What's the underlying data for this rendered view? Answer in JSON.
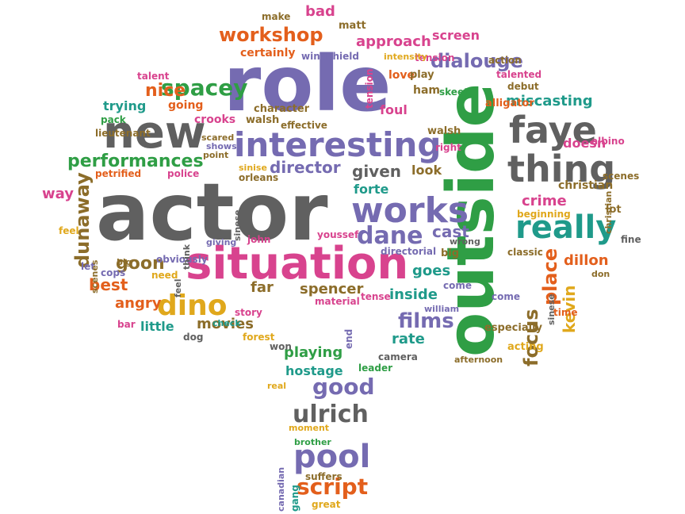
{
  "cloud": {
    "words": [
      {
        "text": "role",
        "color": "c0"
      },
      {
        "text": "actor",
        "color": "c2"
      },
      {
        "text": "outside",
        "color": "c1"
      },
      {
        "text": "situation",
        "color": "c4"
      },
      {
        "text": "new",
        "color": "c2"
      },
      {
        "text": "interesting",
        "color": "c0"
      },
      {
        "text": "faye",
        "color": "c2"
      },
      {
        "text": "thing",
        "color": "c2"
      },
      {
        "text": "works",
        "color": "c0"
      },
      {
        "text": "really",
        "color": "c5"
      },
      {
        "text": "pool",
        "color": "c0"
      },
      {
        "text": "dino",
        "color": "c7"
      },
      {
        "text": "dane",
        "color": "c0"
      },
      {
        "text": "ulrich",
        "color": "c2"
      },
      {
        "text": "good",
        "color": "c0"
      },
      {
        "text": "script",
        "color": "c3"
      },
      {
        "text": "spacey",
        "color": "c1"
      },
      {
        "text": "dialouge",
        "color": "c0"
      },
      {
        "text": "workshop",
        "color": "c3"
      },
      {
        "text": "films",
        "color": "c0"
      },
      {
        "text": "performances",
        "color": "c1"
      },
      {
        "text": "director",
        "color": "c0"
      },
      {
        "text": "nice",
        "color": "c3"
      },
      {
        "text": "goon",
        "color": "c6"
      },
      {
        "text": "best",
        "color": "c3"
      },
      {
        "text": "cast",
        "color": "c0"
      },
      {
        "text": "miscasting",
        "color": "c5"
      },
      {
        "text": "screen",
        "color": "c4"
      },
      {
        "text": "approach",
        "color": "c4"
      },
      {
        "text": "playing",
        "color": "c1"
      },
      {
        "text": "hostage",
        "color": "c5"
      },
      {
        "text": "movies",
        "color": "c6"
      },
      {
        "text": "angry",
        "color": "c3"
      },
      {
        "text": "inside",
        "color": "c5"
      },
      {
        "text": "given",
        "color": "c2"
      },
      {
        "text": "goes",
        "color": "c5"
      },
      {
        "text": "rate",
        "color": "c5"
      },
      {
        "text": "spencer",
        "color": "c6"
      },
      {
        "text": "far",
        "color": "c6"
      },
      {
        "text": "forte",
        "color": "c5"
      },
      {
        "text": "crime",
        "color": "c4"
      },
      {
        "text": "look",
        "color": "c6"
      },
      {
        "text": "dillon",
        "color": "c3"
      },
      {
        "text": "place",
        "color": "c3"
      },
      {
        "text": "kevin",
        "color": "c7"
      },
      {
        "text": "focus",
        "color": "c6"
      },
      {
        "text": "dunaway",
        "color": "c6"
      },
      {
        "text": "way",
        "color": "c4"
      },
      {
        "text": "trying",
        "color": "c5"
      },
      {
        "text": "going",
        "color": "c3"
      },
      {
        "text": "little",
        "color": "c5"
      },
      {
        "text": "bad",
        "color": "c4"
      },
      {
        "text": "matt",
        "color": "c6"
      },
      {
        "text": "certainly",
        "color": "c3"
      },
      {
        "text": "make",
        "color": "c6"
      },
      {
        "text": "love",
        "color": "c3"
      },
      {
        "text": "tension",
        "color": "c4"
      },
      {
        "text": "foul",
        "color": "c4"
      },
      {
        "text": "ham",
        "color": "c6"
      },
      {
        "text": "walsh",
        "color": "c6"
      },
      {
        "text": "alligator",
        "color": "c3"
      },
      {
        "text": "right",
        "color": "c4"
      },
      {
        "text": "play",
        "color": "c6"
      },
      {
        "text": "skeet",
        "color": "c1"
      },
      {
        "text": "action",
        "color": "c6"
      },
      {
        "text": "talented",
        "color": "c4"
      },
      {
        "text": "debut",
        "color": "c6"
      },
      {
        "text": "doesn",
        "color": "c4"
      },
      {
        "text": "albino",
        "color": "c4"
      },
      {
        "text": "christian",
        "color": "c6"
      },
      {
        "text": "scenes",
        "color": "c6"
      },
      {
        "text": "lot",
        "color": "c6"
      },
      {
        "text": "beginning",
        "color": "c7"
      },
      {
        "text": "classic",
        "color": "c6"
      },
      {
        "text": "fine",
        "color": "c2"
      },
      {
        "text": "don",
        "color": "c6"
      },
      {
        "text": "time",
        "color": "c3"
      },
      {
        "text": "especially",
        "color": "c6"
      },
      {
        "text": "acting",
        "color": "c7"
      },
      {
        "text": "afternoon",
        "color": "c6"
      },
      {
        "text": "camera",
        "color": "c2"
      },
      {
        "text": "leader",
        "color": "c1"
      },
      {
        "text": "william",
        "color": "c0"
      },
      {
        "text": "come",
        "color": "c0"
      },
      {
        "text": "big",
        "color": "c6"
      },
      {
        "text": "wrong",
        "color": "c2"
      },
      {
        "text": "directorial",
        "color": "c0"
      },
      {
        "text": "tense",
        "color": "c4"
      },
      {
        "text": "youssef",
        "color": "c4"
      },
      {
        "text": "material",
        "color": "c4"
      },
      {
        "text": "won",
        "color": "c2"
      },
      {
        "text": "story",
        "color": "c4"
      },
      {
        "text": "forest",
        "color": "c7"
      },
      {
        "text": "check",
        "color": "c5"
      },
      {
        "text": "dog",
        "color": "c2"
      },
      {
        "text": "bar",
        "color": "c4"
      },
      {
        "text": "need",
        "color": "c7"
      },
      {
        "text": "cops",
        "color": "c0"
      },
      {
        "text": "obviously",
        "color": "c0"
      },
      {
        "text": "john",
        "color": "c4"
      },
      {
        "text": "feel",
        "color": "c7"
      },
      {
        "text": "let",
        "color": "c0"
      },
      {
        "text": "lieutenant",
        "color": "c6"
      },
      {
        "text": "petrified",
        "color": "c3"
      },
      {
        "text": "police",
        "color": "c4"
      },
      {
        "text": "sinise",
        "color": "c7"
      },
      {
        "text": "orleans",
        "color": "c6"
      },
      {
        "text": "scared",
        "color": "c6"
      },
      {
        "text": "shows",
        "color": "c0"
      },
      {
        "text": "point",
        "color": "c6"
      },
      {
        "text": "character",
        "color": "c6"
      },
      {
        "text": "effective",
        "color": "c6"
      },
      {
        "text": "walsh",
        "color": "c6"
      },
      {
        "text": "crooks",
        "color": "c4"
      },
      {
        "text": "talent",
        "color": "c4"
      },
      {
        "text": "pack",
        "color": "c1"
      },
      {
        "text": "windshield",
        "color": "c0"
      },
      {
        "text": "tension",
        "color": "c4"
      },
      {
        "text": "intensity",
        "color": "c7"
      },
      {
        "text": "end",
        "color": "c0"
      },
      {
        "text": "real",
        "color": "c7"
      },
      {
        "text": "moment",
        "color": "c7"
      },
      {
        "text": "brother",
        "color": "c1"
      },
      {
        "text": "suffers",
        "color": "c6"
      },
      {
        "text": "great",
        "color": "c7"
      },
      {
        "text": "gang",
        "color": "c5"
      },
      {
        "text": "canadian",
        "color": "c0"
      },
      {
        "text": "think",
        "color": "c2"
      },
      {
        "text": "sinese",
        "color": "c2"
      },
      {
        "text": "giving",
        "color": "c0"
      },
      {
        "text": "feel",
        "color": "c2"
      },
      {
        "text": "scenes",
        "color": "c6"
      },
      {
        "text": "christian",
        "color": "c6"
      },
      {
        "text": "sinese",
        "color": "c2"
      },
      {
        "text": "big",
        "color": "c6"
      },
      {
        "text": "come",
        "color": "c0"
      }
    ]
  }
}
